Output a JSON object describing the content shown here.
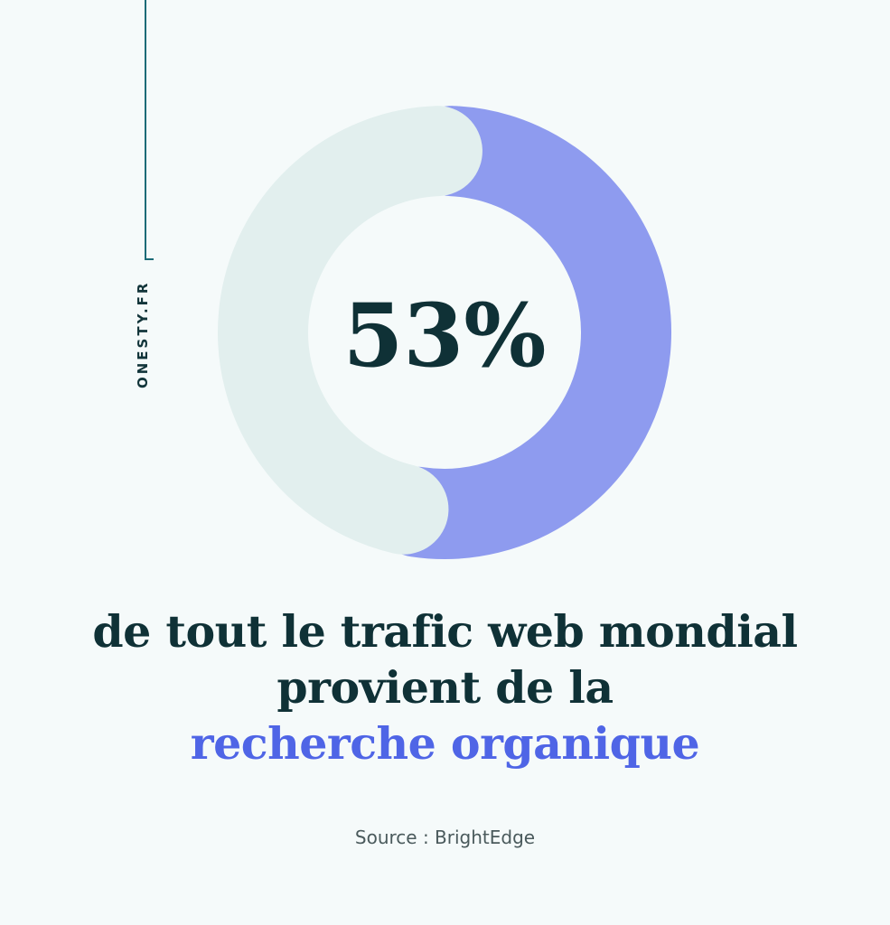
{
  "brand": {
    "name": "ONESTY.FR"
  },
  "chart_data": {
    "type": "pie",
    "style": "donut",
    "slices": [
      {
        "value": 53,
        "color": "#8e9bef"
      },
      {
        "value": 47,
        "color": "#e2efee"
      }
    ],
    "center_label": "53%"
  },
  "caption": {
    "line1": "de tout le trafic web mondial",
    "line2": "provient de la",
    "line3": "recherche organique"
  },
  "source": "Source : BrightEdge"
}
